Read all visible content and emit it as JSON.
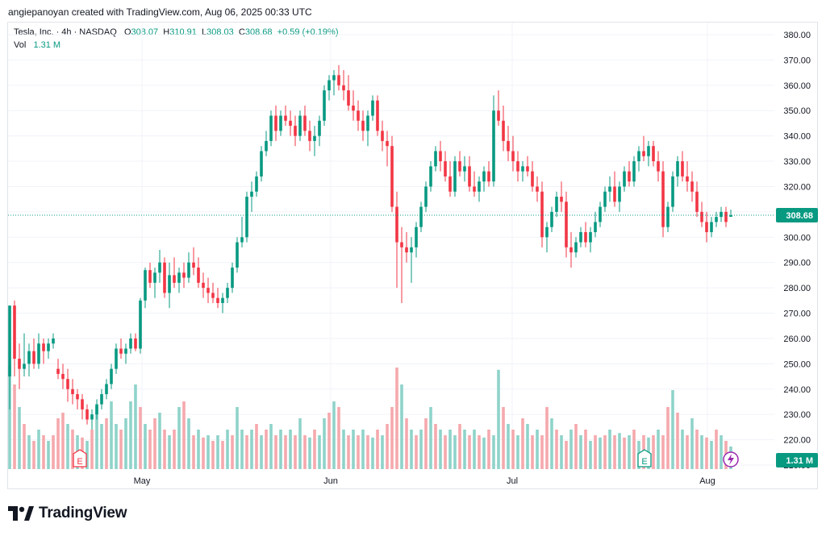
{
  "header": {
    "creator": "angiepanoyan created with TradingView.com, Aug 06, 2025 00:33 UTC"
  },
  "legend": {
    "symbol": "Tesla, Inc. · 4h · NASDAQ",
    "open_label": "O",
    "open": "308.07",
    "high_label": "H",
    "high": "310.91",
    "low_label": "L",
    "low": "308.03",
    "close_label": "C",
    "close": "308.68",
    "change": "+0.59 (+0.19%)",
    "vol_label": "Vol",
    "vol": "1.31 M"
  },
  "colors": {
    "up": "#089981",
    "down": "#f23645",
    "up_vol": "#8fd3ca",
    "down_vol": "#f5a9ad",
    "last": "#089981"
  },
  "chart_data": {
    "type": "candlestick",
    "symbol": "Tesla, Inc.",
    "interval": "4h",
    "exchange": "NASDAQ",
    "y_ticks": [
      "380.00",
      "370.00",
      "360.00",
      "350.00",
      "340.00",
      "330.00",
      "320.00",
      "310.00",
      "300.00",
      "290.00",
      "280.00",
      "270.00",
      "260.00",
      "250.00",
      "240.00",
      "230.00",
      "220.00",
      "210.00"
    ],
    "x_ticks": [
      "May",
      "Jun",
      "Jul",
      "Aug"
    ],
    "ylim": [
      210,
      380
    ],
    "last_price": "308.68",
    "last_volume": "1.31 M",
    "event_badges": [
      "E",
      "E"
    ],
    "candles": [
      [
        245,
        273,
        232,
        273
      ],
      [
        273,
        275,
        245,
        252
      ],
      [
        252,
        258,
        240,
        248
      ],
      [
        248,
        262,
        245,
        250
      ],
      [
        250,
        258,
        245,
        255
      ],
      [
        255,
        260,
        248,
        250
      ],
      [
        250,
        262,
        248,
        258
      ],
      [
        258,
        260,
        250,
        255
      ],
      [
        255,
        260,
        252,
        258
      ],
      [
        258,
        262,
        256,
        260
      ],
      [
        248,
        252,
        244,
        246
      ],
      [
        246,
        250,
        240,
        244
      ],
      [
        244,
        248,
        235,
        240
      ],
      [
        240,
        244,
        234,
        238
      ],
      [
        238,
        240,
        232,
        236
      ],
      [
        236,
        238,
        228,
        232
      ],
      [
        232,
        234,
        226,
        228
      ],
      [
        228,
        232,
        224,
        230
      ],
      [
        230,
        236,
        228,
        234
      ],
      [
        234,
        240,
        232,
        238
      ],
      [
        238,
        244,
        236,
        242
      ],
      [
        242,
        250,
        240,
        248
      ],
      [
        248,
        258,
        246,
        256
      ],
      [
        256,
        260,
        252,
        254
      ],
      [
        254,
        258,
        250,
        256
      ],
      [
        256,
        262,
        254,
        260
      ],
      [
        260,
        262,
        255,
        256
      ],
      [
        256,
        276,
        254,
        275
      ],
      [
        275,
        288,
        272,
        287
      ],
      [
        287,
        290,
        280,
        282
      ],
      [
        282,
        288,
        276,
        286
      ],
      [
        286,
        295,
        282,
        290
      ],
      [
        290,
        292,
        276,
        278
      ],
      [
        278,
        290,
        272,
        285
      ],
      [
        285,
        292,
        280,
        282
      ],
      [
        282,
        288,
        278,
        286
      ],
      [
        286,
        290,
        280,
        284
      ],
      [
        284,
        294,
        282,
        290
      ],
      [
        290,
        296,
        285,
        288
      ],
      [
        288,
        292,
        280,
        282
      ],
      [
        282,
        286,
        276,
        280
      ],
      [
        280,
        284,
        274,
        278
      ],
      [
        278,
        282,
        274,
        276
      ],
      [
        276,
        280,
        272,
        274
      ],
      [
        274,
        278,
        270,
        276
      ],
      [
        276,
        282,
        274,
        280
      ],
      [
        280,
        290,
        278,
        288
      ],
      [
        288,
        300,
        286,
        298
      ],
      [
        298,
        308,
        296,
        300
      ],
      [
        300,
        318,
        298,
        316
      ],
      [
        316,
        322,
        310,
        318
      ],
      [
        318,
        326,
        316,
        324
      ],
      [
        324,
        336,
        322,
        334
      ],
      [
        334,
        342,
        332,
        338
      ],
      [
        338,
        350,
        336,
        348
      ],
      [
        348,
        352,
        338,
        342
      ],
      [
        342,
        350,
        340,
        348
      ],
      [
        348,
        352,
        344,
        346
      ],
      [
        346,
        350,
        340,
        344
      ],
      [
        344,
        348,
        336,
        340
      ],
      [
        340,
        350,
        338,
        348
      ],
      [
        348,
        352,
        340,
        342
      ],
      [
        342,
        346,
        334,
        338
      ],
      [
        338,
        344,
        332,
        340
      ],
      [
        340,
        348,
        336,
        346
      ],
      [
        346,
        360,
        344,
        358
      ],
      [
        358,
        364,
        354,
        362
      ],
      [
        362,
        366,
        356,
        364
      ],
      [
        364,
        368,
        358,
        360
      ],
      [
        360,
        366,
        354,
        358
      ],
      [
        358,
        364,
        350,
        352
      ],
      [
        352,
        358,
        346,
        350
      ],
      [
        350,
        354,
        342,
        346
      ],
      [
        346,
        350,
        338,
        342
      ],
      [
        342,
        350,
        336,
        348
      ],
      [
        348,
        356,
        346,
        354
      ],
      [
        354,
        356,
        340,
        342
      ],
      [
        342,
        346,
        334,
        338
      ],
      [
        338,
        342,
        328,
        336
      ],
      [
        336,
        340,
        310,
        312
      ],
      [
        312,
        318,
        280,
        298
      ],
      [
        298,
        304,
        274,
        296
      ],
      [
        296,
        302,
        290,
        294
      ],
      [
        294,
        300,
        282,
        296
      ],
      [
        296,
        306,
        292,
        304
      ],
      [
        304,
        314,
        302,
        312
      ],
      [
        312,
        322,
        310,
        320
      ],
      [
        320,
        330,
        318,
        328
      ],
      [
        328,
        336,
        326,
        334
      ],
      [
        334,
        338,
        326,
        330
      ],
      [
        330,
        334,
        322,
        324
      ],
      [
        324,
        330,
        316,
        318
      ],
      [
        318,
        332,
        316,
        330
      ],
      [
        330,
        334,
        324,
        326
      ],
      [
        326,
        332,
        322,
        328
      ],
      [
        328,
        332,
        318,
        320
      ],
      [
        320,
        326,
        316,
        318
      ],
      [
        318,
        324,
        314,
        322
      ],
      [
        322,
        328,
        318,
        326
      ],
      [
        326,
        330,
        320,
        322
      ],
      [
        322,
        356,
        320,
        350
      ],
      [
        350,
        358,
        344,
        346
      ],
      [
        346,
        352,
        334,
        338
      ],
      [
        338,
        344,
        330,
        334
      ],
      [
        334,
        340,
        326,
        330
      ],
      [
        330,
        334,
        322,
        326
      ],
      [
        326,
        330,
        322,
        328
      ],
      [
        328,
        332,
        324,
        326
      ],
      [
        326,
        330,
        318,
        320
      ],
      [
        320,
        324,
        314,
        318
      ],
      [
        318,
        322,
        296,
        300
      ],
      [
        300,
        306,
        294,
        304
      ],
      [
        304,
        312,
        302,
        310
      ],
      [
        310,
        318,
        308,
        316
      ],
      [
        316,
        322,
        310,
        314
      ],
      [
        314,
        318,
        292,
        296
      ],
      [
        296,
        302,
        288,
        294
      ],
      [
        294,
        300,
        292,
        298
      ],
      [
        298,
        304,
        296,
        302
      ],
      [
        302,
        306,
        296,
        298
      ],
      [
        298,
        304,
        294,
        302
      ],
      [
        302,
        310,
        300,
        306
      ],
      [
        306,
        314,
        304,
        312
      ],
      [
        312,
        320,
        310,
        318
      ],
      [
        318,
        324,
        314,
        320
      ],
      [
        320,
        326,
        312,
        314
      ],
      [
        314,
        322,
        310,
        320
      ],
      [
        320,
        328,
        318,
        326
      ],
      [
        326,
        330,
        320,
        322
      ],
      [
        322,
        332,
        320,
        330
      ],
      [
        330,
        336,
        326,
        334
      ],
      [
        334,
        340,
        330,
        332
      ],
      [
        332,
        338,
        328,
        336
      ],
      [
        336,
        338,
        328,
        330
      ],
      [
        330,
        334,
        322,
        326
      ],
      [
        326,
        330,
        300,
        304
      ],
      [
        304,
        314,
        302,
        312
      ],
      [
        312,
        326,
        310,
        324
      ],
      [
        324,
        332,
        320,
        330
      ],
      [
        330,
        334,
        322,
        324
      ],
      [
        324,
        330,
        318,
        322
      ],
      [
        322,
        326,
        314,
        318
      ],
      [
        318,
        322,
        308,
        310
      ],
      [
        310,
        314,
        304,
        306
      ],
      [
        306,
        310,
        298,
        302
      ],
      [
        302,
        308,
        300,
        306
      ],
      [
        306,
        310,
        304,
        308
      ],
      [
        308,
        312,
        306,
        310
      ],
      [
        310,
        312,
        304,
        306
      ],
      [
        308.07,
        310.91,
        308.03,
        308.68
      ]
    ],
    "volumes": [
      [
        0.92,
        1
      ],
      [
        0.75,
        0
      ],
      [
        0.55,
        1
      ],
      [
        0.4,
        0
      ],
      [
        0.3,
        1
      ],
      [
        0.25,
        0
      ],
      [
        0.35,
        1
      ],
      [
        0.3,
        0
      ],
      [
        0.25,
        1
      ],
      [
        0.3,
        0
      ],
      [
        0.45,
        0
      ],
      [
        0.5,
        0
      ],
      [
        0.4,
        1
      ],
      [
        0.35,
        0
      ],
      [
        0.3,
        1
      ],
      [
        0.28,
        0
      ],
      [
        0.25,
        1
      ],
      [
        0.35,
        0
      ],
      [
        0.55,
        1
      ],
      [
        0.4,
        1
      ],
      [
        0.45,
        0
      ],
      [
        0.6,
        1
      ],
      [
        0.4,
        1
      ],
      [
        0.35,
        0
      ],
      [
        0.45,
        1
      ],
      [
        0.6,
        1
      ],
      [
        0.75,
        1
      ],
      [
        0.55,
        0
      ],
      [
        0.4,
        1
      ],
      [
        0.35,
        0
      ],
      [
        0.45,
        0
      ],
      [
        0.5,
        1
      ],
      [
        0.35,
        0
      ],
      [
        0.3,
        1
      ],
      [
        0.35,
        0
      ],
      [
        0.55,
        1
      ],
      [
        0.6,
        0
      ],
      [
        0.45,
        1
      ],
      [
        0.3,
        0
      ],
      [
        0.35,
        1
      ],
      [
        0.28,
        0
      ],
      [
        0.3,
        1
      ],
      [
        0.25,
        0
      ],
      [
        0.3,
        1
      ],
      [
        0.25,
        0
      ],
      [
        0.35,
        1
      ],
      [
        0.3,
        0
      ],
      [
        0.55,
        1
      ],
      [
        0.35,
        1
      ],
      [
        0.3,
        0
      ],
      [
        0.35,
        1
      ],
      [
        0.4,
        0
      ],
      [
        0.3,
        1
      ],
      [
        0.35,
        0
      ],
      [
        0.4,
        1
      ],
      [
        0.3,
        0
      ],
      [
        0.35,
        1
      ],
      [
        0.3,
        0
      ],
      [
        0.35,
        1
      ],
      [
        0.3,
        0
      ],
      [
        0.45,
        1
      ],
      [
        0.3,
        0
      ],
      [
        0.28,
        1
      ],
      [
        0.35,
        0
      ],
      [
        0.3,
        1
      ],
      [
        0.45,
        1
      ],
      [
        0.5,
        0
      ],
      [
        0.6,
        1
      ],
      [
        0.55,
        0
      ],
      [
        0.35,
        1
      ],
      [
        0.3,
        0
      ],
      [
        0.35,
        1
      ],
      [
        0.3,
        0
      ],
      [
        0.35,
        1
      ],
      [
        0.3,
        0
      ],
      [
        0.28,
        1
      ],
      [
        0.35,
        0
      ],
      [
        0.3,
        1
      ],
      [
        0.4,
        0
      ],
      [
        0.55,
        0
      ],
      [
        0.9,
        0
      ],
      [
        0.75,
        1
      ],
      [
        0.45,
        0
      ],
      [
        0.35,
        1
      ],
      [
        0.3,
        0
      ],
      [
        0.35,
        1
      ],
      [
        0.45,
        0
      ],
      [
        0.55,
        1
      ],
      [
        0.4,
        0
      ],
      [
        0.35,
        1
      ],
      [
        0.3,
        0
      ],
      [
        0.35,
        1
      ],
      [
        0.3,
        1
      ],
      [
        0.4,
        0
      ],
      [
        0.35,
        1
      ],
      [
        0.3,
        0
      ],
      [
        0.35,
        1
      ],
      [
        0.3,
        0
      ],
      [
        0.28,
        1
      ],
      [
        0.35,
        0
      ],
      [
        0.3,
        1
      ],
      [
        0.88,
        1
      ],
      [
        0.55,
        0
      ],
      [
        0.4,
        1
      ],
      [
        0.35,
        0
      ],
      [
        0.3,
        1
      ],
      [
        0.45,
        0
      ],
      [
        0.4,
        1
      ],
      [
        0.3,
        0
      ],
      [
        0.35,
        1
      ],
      [
        0.3,
        0
      ],
      [
        0.55,
        0
      ],
      [
        0.45,
        1
      ],
      [
        0.35,
        0
      ],
      [
        0.3,
        1
      ],
      [
        0.25,
        0
      ],
      [
        0.35,
        1
      ],
      [
        0.4,
        0
      ],
      [
        0.3,
        1
      ],
      [
        0.35,
        0
      ],
      [
        0.25,
        1
      ],
      [
        0.3,
        0
      ],
      [
        0.28,
        1
      ],
      [
        0.3,
        0
      ],
      [
        0.35,
        1
      ],
      [
        0.3,
        0
      ],
      [
        0.32,
        1
      ],
      [
        0.28,
        0
      ],
      [
        0.3,
        1
      ],
      [
        0.35,
        0
      ],
      [
        0.25,
        1
      ],
      [
        0.3,
        0
      ],
      [
        0.28,
        1
      ],
      [
        0.3,
        0
      ],
      [
        0.35,
        1
      ],
      [
        0.3,
        0
      ],
      [
        0.55,
        0
      ],
      [
        0.7,
        1
      ],
      [
        0.5,
        0
      ],
      [
        0.35,
        1
      ],
      [
        0.3,
        0
      ],
      [
        0.45,
        1
      ],
      [
        0.35,
        0
      ],
      [
        0.3,
        1
      ],
      [
        0.28,
        0
      ],
      [
        0.25,
        1
      ],
      [
        0.35,
        0
      ],
      [
        0.3,
        1
      ],
      [
        0.25,
        0
      ],
      [
        0.2,
        1
      ]
    ]
  }
}
